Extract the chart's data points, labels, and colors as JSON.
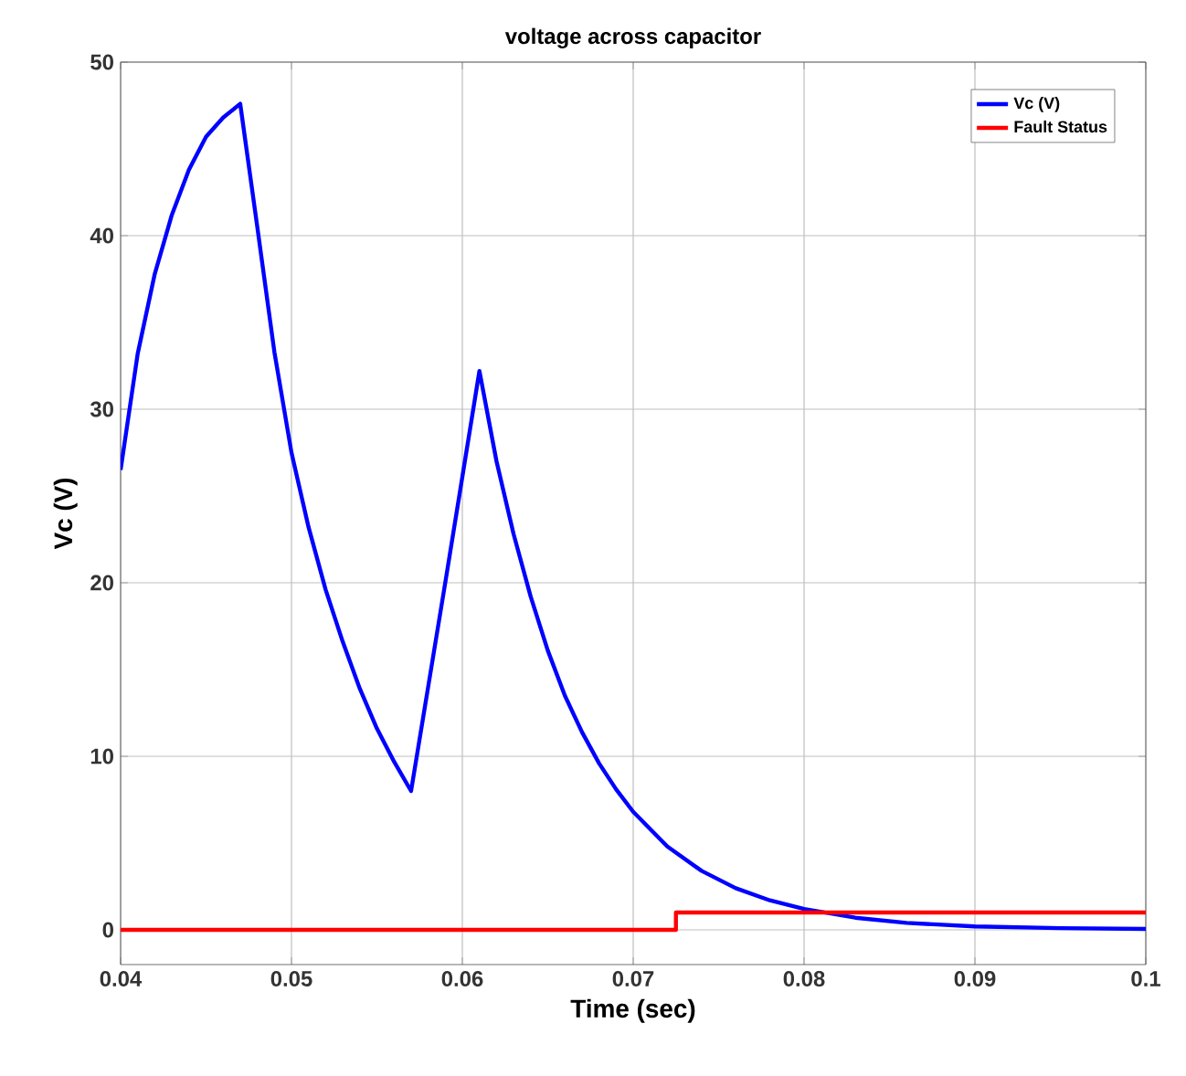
{
  "chart_data": {
    "type": "line",
    "title": "voltage across capacitor",
    "xlabel": "Time (sec)",
    "ylabel": "Vc (V)",
    "xlim": [
      0.04,
      0.1
    ],
    "ylim": [
      -2,
      50
    ],
    "xticks": [
      0.04,
      0.05,
      0.06,
      0.07,
      0.08,
      0.09,
      0.1
    ],
    "yticks": [
      0,
      10,
      20,
      30,
      40,
      50
    ],
    "grid": true,
    "legend": "top right",
    "marker": "none",
    "line_style": "solid",
    "series": [
      {
        "name": "Vc (V)",
        "color": "#0000ff",
        "x": [
          0.04,
          0.041,
          0.042,
          0.043,
          0.044,
          0.045,
          0.046,
          0.047,
          0.048,
          0.049,
          0.05,
          0.051,
          0.052,
          0.053,
          0.054,
          0.055,
          0.056,
          0.057,
          0.058,
          0.059,
          0.06,
          0.061,
          0.062,
          0.063,
          0.064,
          0.065,
          0.066,
          0.067,
          0.068,
          0.069,
          0.07,
          0.072,
          0.074,
          0.076,
          0.078,
          0.08,
          0.083,
          0.086,
          0.09,
          0.095,
          0.1
        ],
        "values": [
          26.5,
          33.2,
          37.8,
          41.2,
          43.8,
          45.7,
          46.8,
          47.6,
          40.5,
          33.3,
          27.5,
          23.2,
          19.6,
          16.6,
          13.9,
          11.6,
          9.7,
          8,
          14,
          20,
          26.1,
          32.2,
          27,
          22.8,
          19.2,
          16.1,
          13.5,
          11.4,
          9.6,
          8.1,
          6.8,
          4.8,
          3.4,
          2.4,
          1.7,
          1.2,
          0.7,
          0.4,
          0.2,
          0.1,
          0.05
        ]
      },
      {
        "name": "Fault Status",
        "color": "#ff0000",
        "x": [
          0.04,
          0.0725,
          0.0725,
          0.1
        ],
        "values": [
          0,
          0,
          1,
          1
        ]
      }
    ]
  }
}
